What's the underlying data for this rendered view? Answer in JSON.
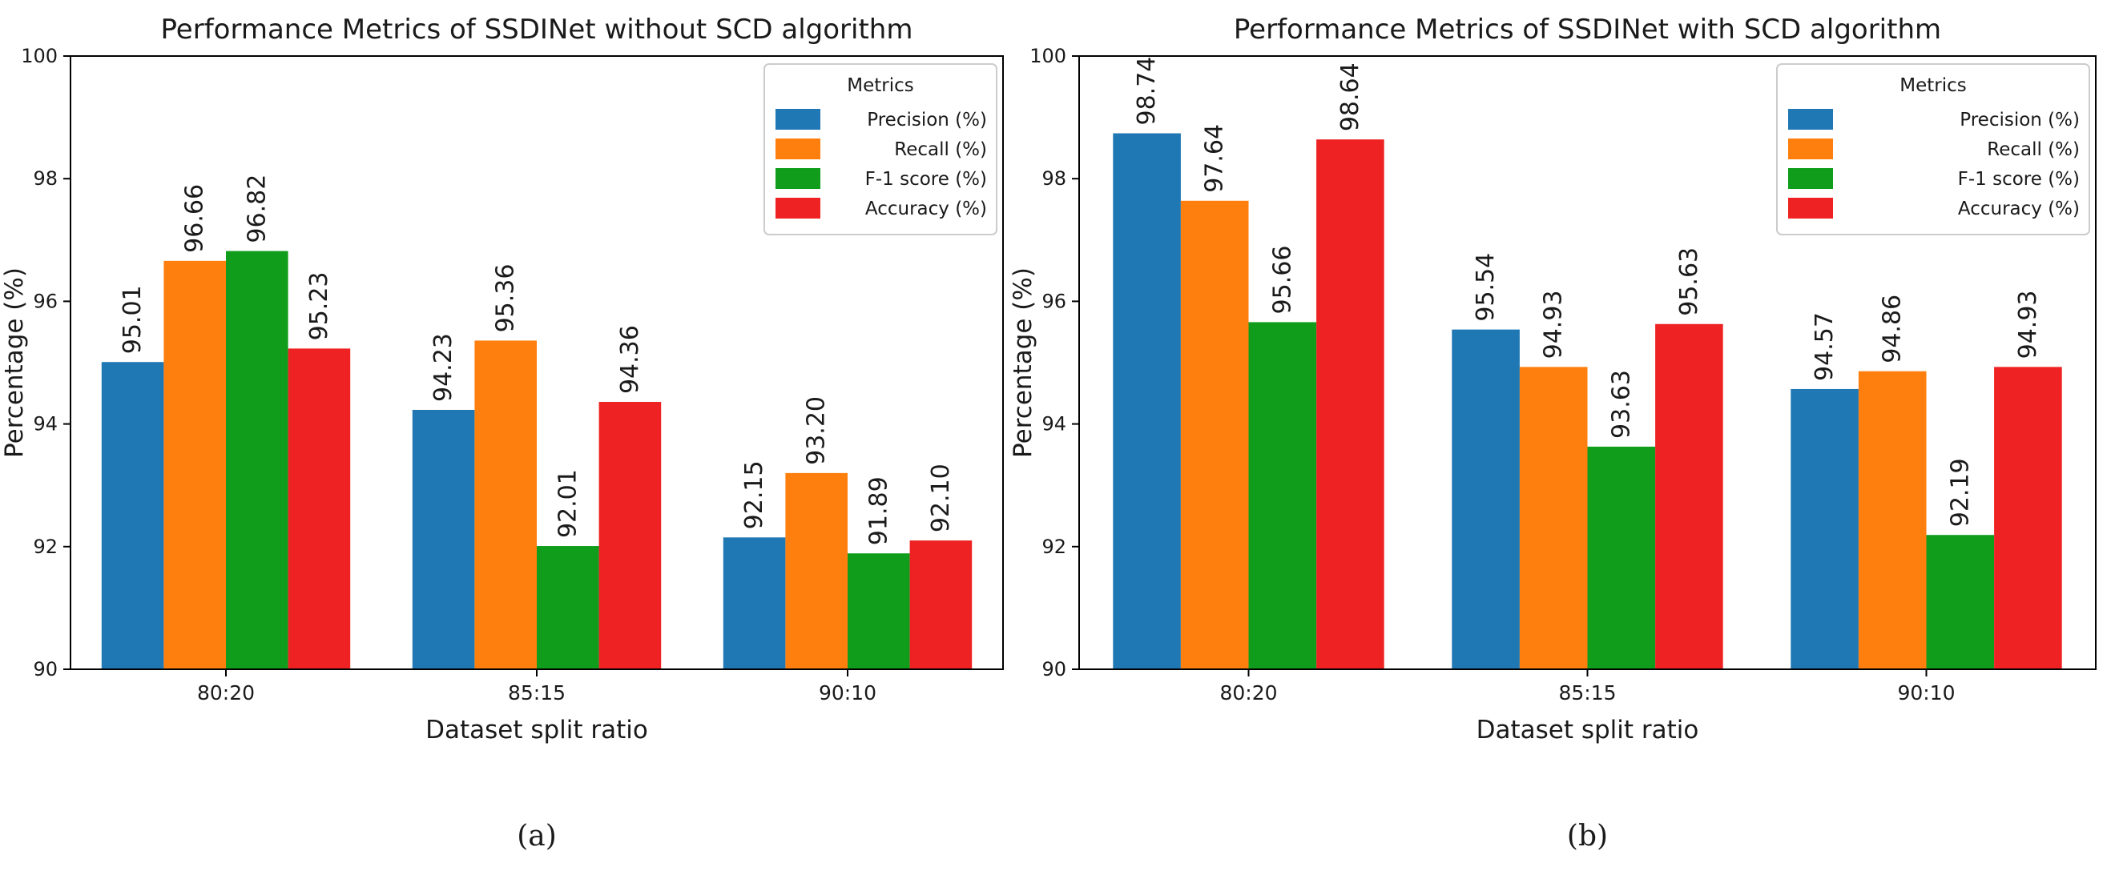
{
  "chart_data": [
    {
      "type": "bar",
      "title": "Performance Metrics of SSDINet without SCD algorithm",
      "xlabel": "Dataset split ratio",
      "ylabel": "Percentage (%)",
      "ylim": [
        90,
        100
      ],
      "yticks": [
        "90",
        "92",
        "94",
        "96",
        "98",
        "100"
      ],
      "categories": [
        "80:20",
        "85:15",
        "90:10"
      ],
      "legend_title": "Metrics",
      "legend_position": "top-right",
      "caption": "(a)",
      "series": [
        {
          "name": "Precision (%)",
          "color": "#1f77b4",
          "values": [
            95.01,
            94.23,
            92.15
          ],
          "labels": [
            "95.01",
            "94.23",
            "92.15"
          ]
        },
        {
          "name": "Recall (%)",
          "color": "#ff7f0e",
          "values": [
            96.66,
            95.36,
            93.2
          ],
          "labels": [
            "96.66",
            "95.36",
            "93.20"
          ]
        },
        {
          "name": "F-1 score (%)",
          "color": "#0f9d1b",
          "values": [
            96.82,
            92.01,
            91.89
          ],
          "labels": [
            "96.82",
            "92.01",
            "91.89"
          ]
        },
        {
          "name": "Accuracy (%)",
          "color": "#ee2222",
          "values": [
            95.23,
            94.36,
            92.1
          ],
          "labels": [
            "95.23",
            "94.36",
            "92.10"
          ]
        }
      ]
    },
    {
      "type": "bar",
      "title": "Performance Metrics of SSDINet with SCD algorithm",
      "xlabel": "Dataset split ratio",
      "ylabel": "Percentage (%)",
      "ylim": [
        90,
        100
      ],
      "yticks": [
        "90",
        "92",
        "94",
        "96",
        "98",
        "100"
      ],
      "categories": [
        "80:20",
        "85:15",
        "90:10"
      ],
      "legend_title": "Metrics",
      "legend_position": "top-right",
      "caption": "(b)",
      "series": [
        {
          "name": "Precision (%)",
          "color": "#1f77b4",
          "values": [
            98.74,
            95.54,
            94.57
          ],
          "labels": [
            "98.74",
            "95.54",
            "94.57"
          ]
        },
        {
          "name": "Recall (%)",
          "color": "#ff7f0e",
          "values": [
            97.64,
            94.93,
            94.86
          ],
          "labels": [
            "97.64",
            "94.93",
            "94.86"
          ]
        },
        {
          "name": "F-1 score (%)",
          "color": "#0f9d1b",
          "values": [
            95.66,
            93.63,
            92.19
          ],
          "labels": [
            "95.66",
            "93.63",
            "92.19"
          ]
        },
        {
          "name": "Accuracy (%)",
          "color": "#ee2222",
          "values": [
            98.64,
            95.63,
            94.93
          ],
          "labels": [
            "98.64",
            "95.63",
            "94.93"
          ]
        }
      ]
    }
  ]
}
